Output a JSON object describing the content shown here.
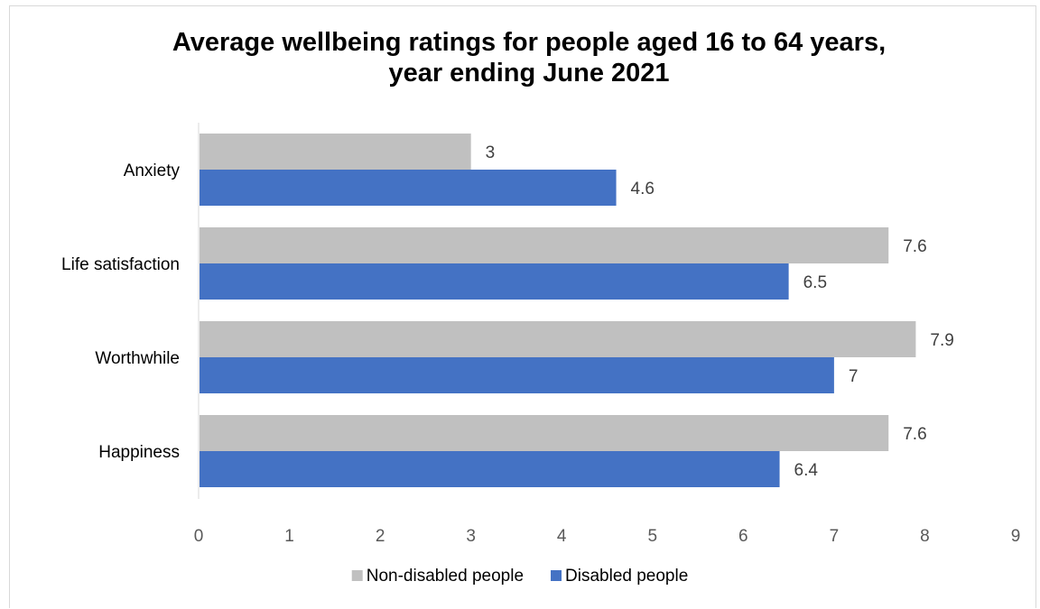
{
  "chart_data": {
    "type": "bar",
    "orientation": "horizontal",
    "title": "Average wellbeing ratings for people aged 16 to 64 years, year ending June 2021",
    "title_lines": [
      "Average wellbeing ratings for people aged 16 to 64 years,",
      "year ending June 2021"
    ],
    "categories": [
      "Anxiety",
      "Life satisfaction",
      "Worthwhile",
      "Happiness"
    ],
    "series": [
      {
        "name": "Non-disabled people",
        "color": "#c0c0c0",
        "values": [
          3,
          7.6,
          7.9,
          7.6
        ]
      },
      {
        "name": "Disabled people",
        "color": "#4472c4",
        "values": [
          4.6,
          6.5,
          7,
          6.4
        ]
      }
    ],
    "xlim": [
      0,
      9
    ],
    "xticks": [
      "0",
      "1",
      "2",
      "3",
      "4",
      "5",
      "6",
      "7",
      "8",
      "9"
    ],
    "xlabel": "",
    "ylabel": "",
    "grid": false,
    "legend_position": "bottom",
    "data_labels": true
  }
}
